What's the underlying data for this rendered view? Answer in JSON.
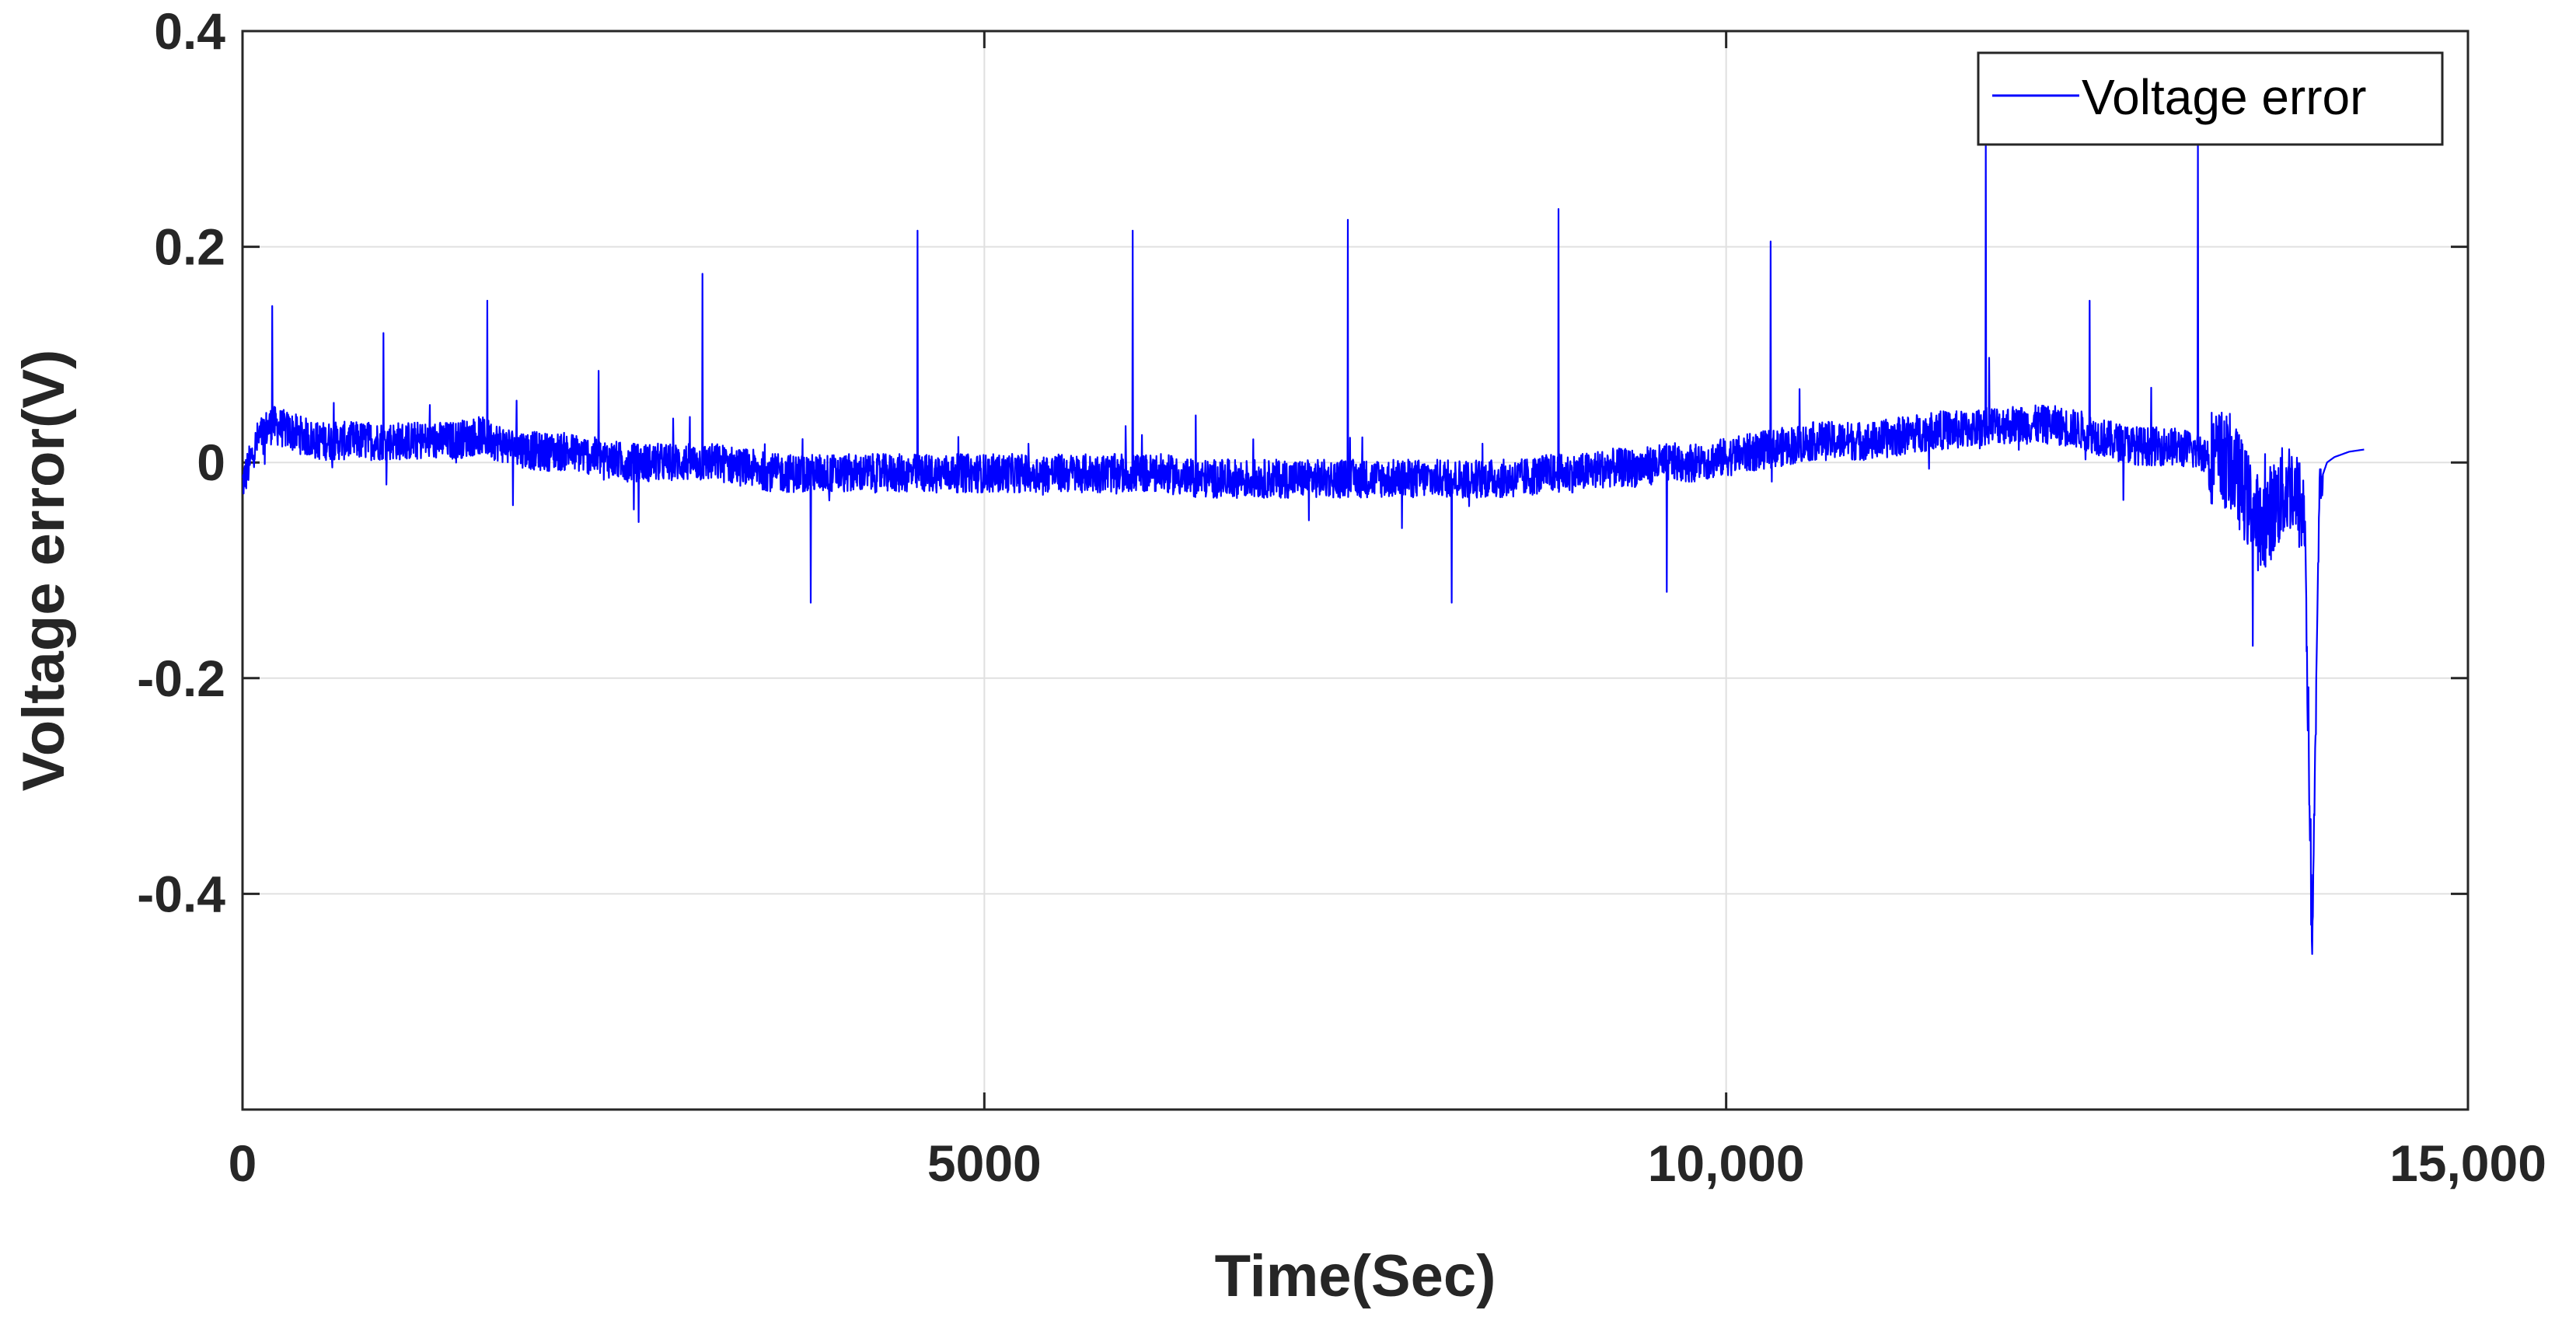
{
  "chart_data": {
    "type": "line",
    "xlabel": "Time(Sec)",
    "ylabel": "Voltage error(V)",
    "xlim": [
      0,
      15000
    ],
    "ylim": [
      -0.6,
      0.4
    ],
    "xticks": [
      0,
      5000,
      10000,
      15000
    ],
    "xtick_labels": [
      "0",
      "5000",
      "10,000",
      "15,000"
    ],
    "yticks": [
      0.4,
      0.2,
      0,
      -0.2,
      -0.4
    ],
    "ytick_labels": [
      "0.4",
      "0.2",
      "0",
      "-0.2",
      "-0.4"
    ],
    "grid": true,
    "legend": {
      "position": "top-right",
      "entries": [
        "Voltage error"
      ]
    },
    "series": [
      {
        "name": "Voltage error",
        "color": "#0000ff",
        "x": [
          0,
          50,
          100,
          150,
          200,
          300,
          400,
          500,
          600,
          800,
          1000,
          1200,
          1400,
          1600,
          1800,
          2000,
          2200,
          2400,
          2600,
          2800,
          3000,
          3200,
          3400,
          3600,
          3800,
          4000,
          4200,
          4400,
          4600,
          4800,
          5000,
          5200,
          5400,
          5600,
          5800,
          6000,
          6200,
          6400,
          6600,
          6800,
          7000,
          7200,
          7400,
          7600,
          7800,
          8000,
          8200,
          8400,
          8600,
          8800,
          9000,
          9200,
          9400,
          9600,
          9800,
          10000,
          10200,
          10400,
          10600,
          10800,
          11000,
          11200,
          11400,
          11600,
          11800,
          12000,
          12200,
          12400,
          12600,
          12800,
          13000,
          13200,
          13300,
          13400,
          13500,
          13600,
          13700,
          13800,
          13900,
          13950,
          14000,
          14050,
          14100,
          14200,
          14300
        ],
        "y": [
          -0.02,
          0.0,
          0.02,
          0.03,
          0.035,
          0.03,
          0.025,
          0.02,
          0.02,
          0.02,
          0.02,
          0.02,
          0.02,
          0.025,
          0.015,
          0.01,
          0.01,
          0.005,
          0.0,
          0.0,
          0.0,
          0.0,
          -0.005,
          -0.01,
          -0.01,
          -0.01,
          -0.01,
          -0.01,
          -0.01,
          -0.01,
          -0.01,
          -0.01,
          -0.01,
          -0.01,
          -0.01,
          -0.01,
          -0.01,
          -0.015,
          -0.015,
          -0.015,
          -0.015,
          -0.015,
          -0.015,
          -0.015,
          -0.015,
          -0.015,
          -0.015,
          -0.015,
          -0.015,
          -0.01,
          -0.01,
          -0.005,
          -0.005,
          0.0,
          0.0,
          0.005,
          0.01,
          0.015,
          0.02,
          0.02,
          0.02,
          0.025,
          0.03,
          0.03,
          0.035,
          0.035,
          0.035,
          0.03,
          0.02,
          0.015,
          0.015,
          0.01,
          0.005,
          0.0,
          -0.03,
          -0.06,
          -0.04,
          -0.02,
          -0.05,
          -0.45,
          -0.02,
          0.0,
          0.005,
          0.01,
          0.012
        ]
      }
    ],
    "spikes": [
      {
        "x": 200,
        "y": 0.145
      },
      {
        "x": 950,
        "y": 0.12
      },
      {
        "x": 1650,
        "y": 0.15
      },
      {
        "x": 2400,
        "y": 0.085
      },
      {
        "x": 3100,
        "y": 0.175
      },
      {
        "x": 3830,
        "y": -0.13
      },
      {
        "x": 4550,
        "y": 0.215
      },
      {
        "x": 6000,
        "y": 0.215
      },
      {
        "x": 7450,
        "y": 0.225
      },
      {
        "x": 8150,
        "y": -0.13
      },
      {
        "x": 8870,
        "y": 0.235
      },
      {
        "x": 9600,
        "y": -0.12
      },
      {
        "x": 10300,
        "y": 0.205
      },
      {
        "x": 11750,
        "y": 0.3
      },
      {
        "x": 12450,
        "y": 0.15
      },
      {
        "x": 13180,
        "y": 0.3
      },
      {
        "x": 13550,
        "y": -0.17
      }
    ]
  }
}
